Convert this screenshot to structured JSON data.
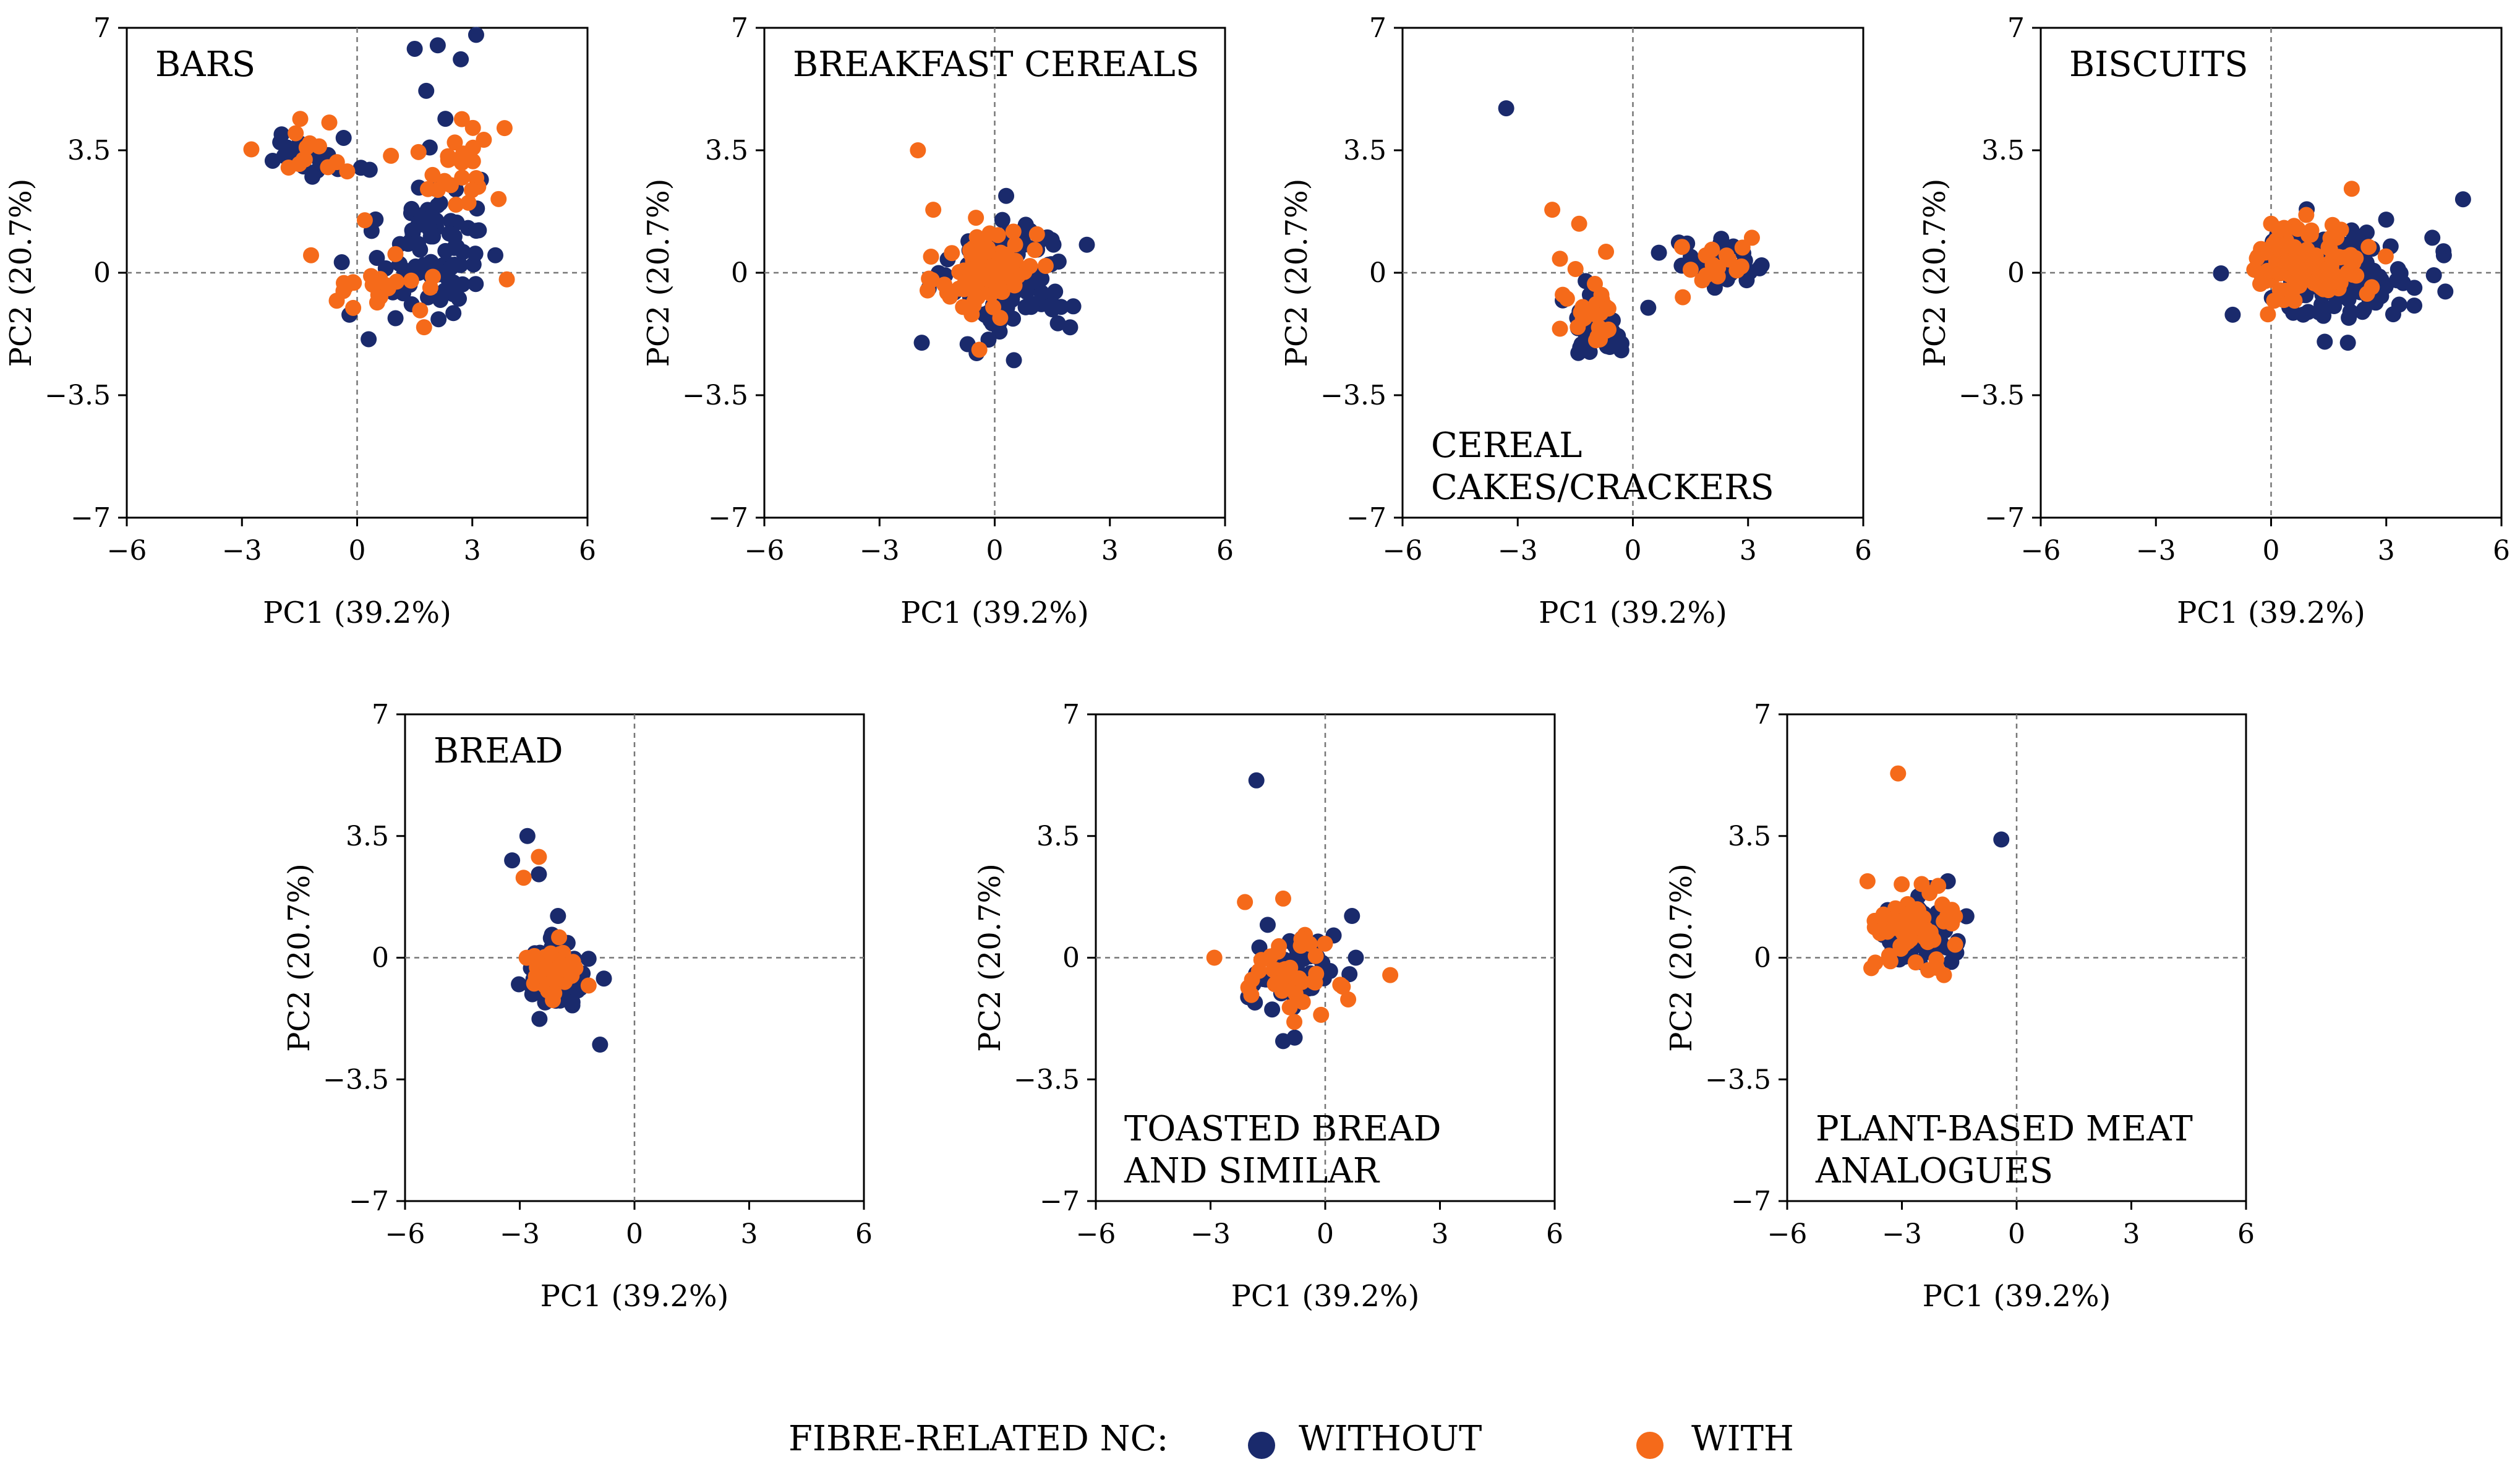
{
  "chart_data": {
    "type": "scatter",
    "axes": {
      "xlabel": "PC1 (39.2%)",
      "ylabel": "PC2 (20.7%)",
      "xlim": [
        -6,
        6
      ],
      "ylim": [
        -7,
        7
      ],
      "xticks": [
        -6,
        -3,
        0,
        3,
        6
      ],
      "yticks": [
        -7,
        -3.5,
        0,
        3.5,
        7
      ],
      "xtick_labels": [
        "−6",
        "−3",
        "0",
        "3",
        "6"
      ],
      "ytick_labels": [
        "−7",
        "−3.5",
        "0",
        "3.5",
        "7"
      ],
      "reference_lines": "dashed at x = 0 and y = 0"
    },
    "series_styles": [
      {
        "name": "WITHOUT",
        "color": "#1a2a6c"
      },
      {
        "name": "WITH",
        "color": "#f56a1a"
      }
    ],
    "legend": {
      "title": "FIBRE-RELATED NC:",
      "entries": [
        "WITHOUT",
        "WITH"
      ],
      "placement": "bottom-center"
    },
    "panels": [
      {
        "title_lines": [
          "BARS"
        ],
        "title_position": "top-left",
        "series": [
          {
            "name": "WITHOUT",
            "clusters": [
              {
                "cx": 1.9,
                "cy": 0.8,
                "sx": 0.65,
                "sy": 1.1,
                "n": 80
              },
              {
                "cx": -1.2,
                "cy": 3.3,
                "sx": 0.65,
                "sy": 0.5,
                "n": 15
              }
            ],
            "points": [
              [
                1.5,
                6.4
              ],
              [
                2.1,
                6.5
              ],
              [
                3.1,
                6.8
              ],
              [
                2.7,
                6.1
              ],
              [
                1.8,
                5.2
              ],
              [
                2.3,
                4.4
              ],
              [
                -1.5,
                3.7
              ],
              [
                -2.2,
                3.2
              ],
              [
                0.1,
                3.0
              ],
              [
                3.6,
                0.5
              ],
              [
                -0.4,
                0.3
              ],
              [
                0.3,
                -1.9
              ],
              [
                -0.2,
                -1.2
              ],
              [
                3.1,
                1.2
              ],
              [
                1.0,
                -1.3
              ]
            ]
          },
          {
            "name": "WITH",
            "clusters": [
              {
                "cx": 2.4,
                "cy": 3.2,
                "sx": 0.7,
                "sy": 0.6,
                "n": 25
              },
              {
                "cx": -1.3,
                "cy": 3.6,
                "sx": 0.6,
                "sy": 0.6,
                "n": 14
              },
              {
                "cx": 1.0,
                "cy": -0.5,
                "sx": 0.9,
                "sy": 0.4,
                "n": 22
              }
            ],
            "points": [
              [
                -1.2,
                0.5
              ],
              [
                -0.3,
                -0.4
              ],
              [
                0.2,
                1.5
              ],
              [
                3.3,
                3.8
              ],
              [
                2.9,
                2.0
              ]
            ]
          }
        ]
      },
      {
        "title_lines": [
          "BREAKFAST CEREALS"
        ],
        "title_position": "top-left",
        "series": [
          {
            "name": "WITHOUT",
            "clusters": [
              {
                "cx": 0.4,
                "cy": -0.1,
                "sx": 0.75,
                "sy": 0.85,
                "n": 120
              }
            ],
            "points": [
              [
                2.4,
                0.8
              ],
              [
                -1.9,
                -2.0
              ],
              [
                0.5,
                -2.5
              ]
            ]
          },
          {
            "name": "WITH",
            "clusters": [
              {
                "cx": -0.2,
                "cy": 0.0,
                "sx": 0.6,
                "sy": 0.6,
                "n": 100
              }
            ],
            "points": [
              [
                -2.0,
                3.5
              ],
              [
                -1.6,
                1.8
              ],
              [
                -0.4,
                -2.2
              ],
              [
                1.1,
                1.1
              ]
            ]
          }
        ]
      },
      {
        "title_lines": [
          "CEREAL",
          "CAKES/CRACKERS"
        ],
        "title_position": "bottom-left",
        "series": [
          {
            "name": "WITHOUT",
            "clusters": [
              {
                "cx": -0.8,
                "cy": -1.5,
                "sx": 0.4,
                "sy": 0.45,
                "n": 45
              },
              {
                "cx": 2.3,
                "cy": 0.2,
                "sx": 0.6,
                "sy": 0.35,
                "n": 40
              }
            ],
            "points": [
              [
                -3.3,
                4.7
              ],
              [
                0.4,
                -1.0
              ]
            ]
          },
          {
            "name": "WITH",
            "clusters": [
              {
                "cx": -1.0,
                "cy": -1.0,
                "sx": 0.35,
                "sy": 0.5,
                "n": 25
              },
              {
                "cx": 2.2,
                "cy": 0.2,
                "sx": 0.5,
                "sy": 0.3,
                "n": 15
              }
            ],
            "points": [
              [
                -2.1,
                1.8
              ],
              [
                -1.4,
                1.4
              ],
              [
                -1.9,
                0.4
              ],
              [
                -1.9,
                -1.6
              ],
              [
                3.1,
                1.0
              ],
              [
                1.3,
                -0.7
              ],
              [
                -0.7,
                0.6
              ]
            ]
          }
        ]
      },
      {
        "title_lines": [
          "BISCUITS"
        ],
        "title_position": "top-left",
        "series": [
          {
            "name": "WITHOUT",
            "clusters": [
              {
                "cx": 1.6,
                "cy": 0.0,
                "sx": 1.0,
                "sy": 0.6,
                "n": 160
              }
            ],
            "points": [
              [
                5.0,
                2.1
              ],
              [
                4.2,
                1.0
              ],
              [
                -1.0,
                -1.2
              ],
              [
                2.0,
                -2.0
              ],
              [
                4.5,
                0.5
              ]
            ]
          },
          {
            "name": "WITH",
            "clusters": [
              {
                "cx": 1.0,
                "cy": 0.3,
                "sx": 0.7,
                "sy": 0.6,
                "n": 110
              }
            ],
            "points": [
              [
                2.1,
                2.4
              ],
              [
                0.0,
                1.4
              ],
              [
                2.5,
                -0.6
              ]
            ]
          }
        ]
      },
      {
        "title_lines": [
          "BREAD"
        ],
        "title_position": "top-left",
        "series": [
          {
            "name": "WITHOUT",
            "clusters": [
              {
                "cx": -2.1,
                "cy": -0.5,
                "sx": 0.4,
                "sy": 0.45,
                "n": 70
              }
            ],
            "points": [
              [
                -2.8,
                3.5
              ],
              [
                -3.2,
                2.8
              ],
              [
                -2.5,
                2.4
              ],
              [
                -2.0,
                1.2
              ],
              [
                -0.9,
                -2.5
              ],
              [
                -0.8,
                -0.6
              ]
            ]
          },
          {
            "name": "WITH",
            "clusters": [
              {
                "cx": -2.1,
                "cy": -0.4,
                "sx": 0.35,
                "sy": 0.35,
                "n": 50
              }
            ],
            "points": [
              [
                -2.5,
                2.9
              ],
              [
                -2.9,
                2.3
              ],
              [
                -1.2,
                -0.8
              ]
            ]
          }
        ]
      },
      {
        "title_lines": [
          "TOASTED BREAD",
          "AND SIMILAR"
        ],
        "title_position": "bottom-left",
        "series": [
          {
            "name": "WITHOUT",
            "clusters": [
              {
                "cx": -0.8,
                "cy": -0.4,
                "sx": 0.55,
                "sy": 0.55,
                "n": 60
              }
            ],
            "points": [
              [
                -1.8,
                5.1
              ],
              [
                -1.1,
                -2.4
              ],
              [
                -0.8,
                -2.3
              ],
              [
                0.7,
                1.2
              ],
              [
                0.8,
                0.0
              ]
            ]
          },
          {
            "name": "WITH",
            "clusters": [
              {
                "cx": -1.0,
                "cy": -0.5,
                "sx": 0.5,
                "sy": 0.5,
                "n": 40
              }
            ],
            "points": [
              [
                -2.9,
                0.0
              ],
              [
                -1.1,
                1.7
              ],
              [
                -2.1,
                1.6
              ],
              [
                1.7,
                -0.5
              ],
              [
                0.6,
                -1.2
              ]
            ]
          }
        ]
      },
      {
        "title_lines": [
          "PLANT-BASED MEAT",
          "ANALOGUES"
        ],
        "title_position": "bottom-left",
        "series": [
          {
            "name": "WITHOUT",
            "clusters": [
              {
                "cx": -2.6,
                "cy": 0.7,
                "sx": 0.5,
                "sy": 0.55,
                "n": 70
              }
            ],
            "points": [
              [
                -0.4,
                3.4
              ],
              [
                -1.8,
                2.2
              ]
            ]
          },
          {
            "name": "WITH",
            "clusters": [
              {
                "cx": -2.6,
                "cy": 1.0,
                "sx": 0.5,
                "sy": 0.5,
                "n": 60
              }
            ],
            "points": [
              [
                -3.1,
                5.3
              ],
              [
                -3.8,
                -0.3
              ],
              [
                -1.9,
                -0.5
              ],
              [
                -3.9,
                2.2
              ]
            ]
          }
        ]
      }
    ]
  }
}
